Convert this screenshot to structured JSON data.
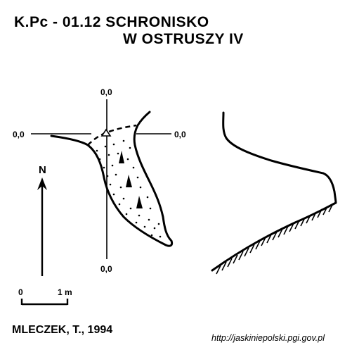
{
  "title": {
    "line1": "K.Pc - 01.12  SCHRONISKO",
    "line2": "W OSTRUSZY IV"
  },
  "coordinate_labels": {
    "top": "0,0",
    "left": "0,0",
    "right": "0,0",
    "bottom": "0,0"
  },
  "north_arrow": {
    "label": "N"
  },
  "scale_bar": {
    "start_label": "0",
    "end_label": "1 m"
  },
  "author": "MLECZEK, T., 1994",
  "source_url": "http://jaskiniepolski.pgi.gov.pl"
}
